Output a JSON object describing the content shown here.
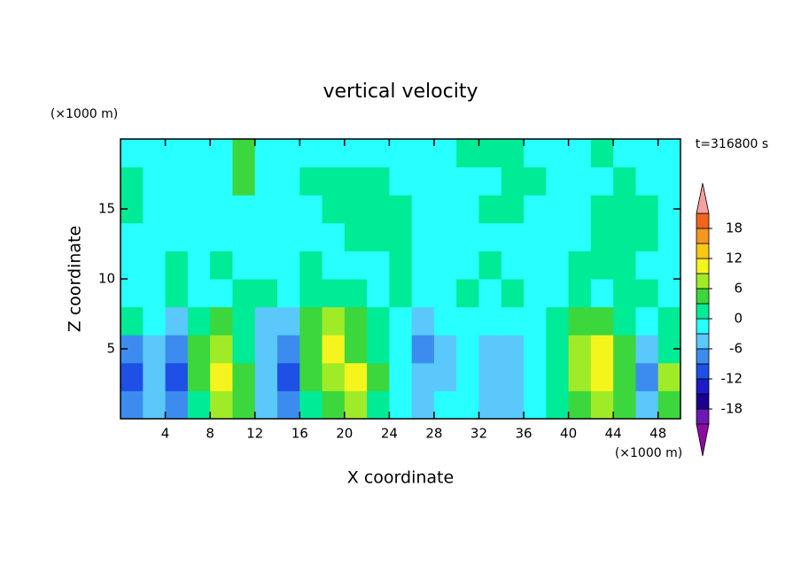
{
  "chart_data": {
    "type": "contour",
    "title": "vertical velocity",
    "xlabel": "X coordinate",
    "ylabel": "Z coordinate",
    "xunit": "(×1000 m)",
    "yunit": "(×1000 m)",
    "time_label": "t=316800 s",
    "xlim": [
      0,
      50
    ],
    "ylim": [
      0,
      20
    ],
    "xticks": [
      4,
      8,
      12,
      16,
      20,
      24,
      28,
      32,
      36,
      40,
      44,
      48
    ],
    "yticks": [
      5,
      10,
      15
    ],
    "x": [
      1,
      3,
      5,
      7,
      9,
      11,
      13,
      15,
      17,
      19,
      21,
      23,
      25,
      27,
      29,
      31,
      33,
      35,
      37,
      39,
      41,
      43,
      45,
      47,
      49
    ],
    "y": [
      1,
      3,
      5,
      7,
      9,
      11,
      13,
      15,
      17,
      19
    ],
    "z": [
      [
        -7.5,
        -4.5,
        -7.5,
        1.5,
        7.5,
        4.5,
        -4.5,
        -7.5,
        1.5,
        4.5,
        7.5,
        1.5,
        -1.5,
        -4.5,
        -1.5,
        -1.5,
        -4.5,
        -4.5,
        -1.5,
        1.5,
        4.5,
        7.5,
        4.5,
        -4.5,
        4.5
      ],
      [
        -10.5,
        -4.5,
        -10.5,
        4.5,
        10.5,
        4.5,
        -4.5,
        -10.5,
        4.5,
        7.5,
        10.5,
        4.5,
        -1.5,
        -4.5,
        -4.5,
        -1.5,
        -4.5,
        -4.5,
        -1.5,
        1.5,
        7.5,
        10.5,
        4.5,
        -7.5,
        7.5
      ],
      [
        -7.5,
        -4.5,
        -7.5,
        4.5,
        7.5,
        1.5,
        -4.5,
        -7.5,
        4.5,
        10.5,
        4.5,
        1.5,
        -1.5,
        -7.5,
        -4.5,
        -1.5,
        -4.5,
        -4.5,
        -1.5,
        1.5,
        7.5,
        10.5,
        4.5,
        -4.5,
        1.5
      ],
      [
        1.5,
        -1.5,
        -4.5,
        1.5,
        4.5,
        1.5,
        -4.5,
        -4.5,
        4.5,
        7.5,
        4.5,
        1.5,
        -1.5,
        -4.5,
        -1.5,
        -1.5,
        -1.5,
        -1.5,
        -1.5,
        1.5,
        4.5,
        4.5,
        1.5,
        -1.5,
        1.5
      ],
      [
        -1.5,
        -1.5,
        1.5,
        -1.5,
        -1.5,
        1.5,
        1.5,
        -1.5,
        1.5,
        1.5,
        1.5,
        -1.5,
        1.5,
        -1.5,
        -1.5,
        1.5,
        -1.5,
        1.5,
        -1.5,
        -1.5,
        1.5,
        -1.5,
        1.5,
        1.5,
        -1.5
      ],
      [
        -1.5,
        -1.5,
        1.5,
        -1.5,
        1.5,
        -1.5,
        -1.5,
        -1.5,
        1.5,
        -1.5,
        -1.5,
        -1.5,
        1.5,
        -1.5,
        -1.5,
        -1.5,
        1.5,
        -1.5,
        -1.5,
        -1.5,
        1.5,
        1.5,
        1.5,
        -1.5,
        -1.5
      ],
      [
        -1.5,
        -1.5,
        -1.5,
        -1.5,
        -1.5,
        -1.5,
        -1.5,
        -1.5,
        -1.5,
        -1.5,
        1.5,
        1.5,
        1.5,
        -1.5,
        -1.5,
        -1.5,
        -1.5,
        -1.5,
        -1.5,
        -1.5,
        -1.5,
        1.5,
        1.5,
        1.5,
        -1.5
      ],
      [
        1.5,
        -1.5,
        -1.5,
        -1.5,
        -1.5,
        -1.5,
        -1.5,
        -1.5,
        -1.5,
        1.5,
        1.5,
        1.5,
        1.5,
        -1.5,
        -1.5,
        -1.5,
        1.5,
        1.5,
        -1.5,
        -1.5,
        -1.5,
        1.5,
        1.5,
        1.5,
        -1.5
      ],
      [
        1.5,
        -1.5,
        -1.5,
        -1.5,
        -1.5,
        4.5,
        -1.5,
        -1.5,
        1.5,
        1.5,
        1.5,
        1.5,
        -1.5,
        -1.5,
        -1.5,
        -1.5,
        -1.5,
        1.5,
        1.5,
        -1.5,
        -1.5,
        -1.5,
        1.5,
        -1.5,
        -1.5
      ],
      [
        -1.5,
        -1.5,
        -1.5,
        -1.5,
        -1.5,
        4.5,
        -1.5,
        -1.5,
        -1.5,
        -1.5,
        -1.5,
        -1.5,
        -1.5,
        -1.5,
        -1.5,
        1.5,
        1.5,
        1.5,
        -1.5,
        -1.5,
        -1.5,
        1.5,
        -1.5,
        -1.5,
        -1.5
      ]
    ],
    "levels": [
      -21,
      -18,
      -15,
      -12,
      -9,
      -6,
      -3,
      0,
      3,
      6,
      9,
      12,
      15,
      18,
      21
    ],
    "colors": [
      "#6a1ab0",
      "#1a0090",
      "#1c1cc8",
      "#1e50e6",
      "#3c8cf0",
      "#5ac8fa",
      "#28ffff",
      "#00eb96",
      "#3cd73c",
      "#a0eb28",
      "#f5f51e",
      "#fac814",
      "#f5961e",
      "#f0641e"
    ],
    "under_color": "#8c0ca0",
    "over_color": "#f5a0a0",
    "cbar_ticks": [
      -18,
      -12,
      -6,
      0,
      6,
      12,
      18
    ]
  }
}
